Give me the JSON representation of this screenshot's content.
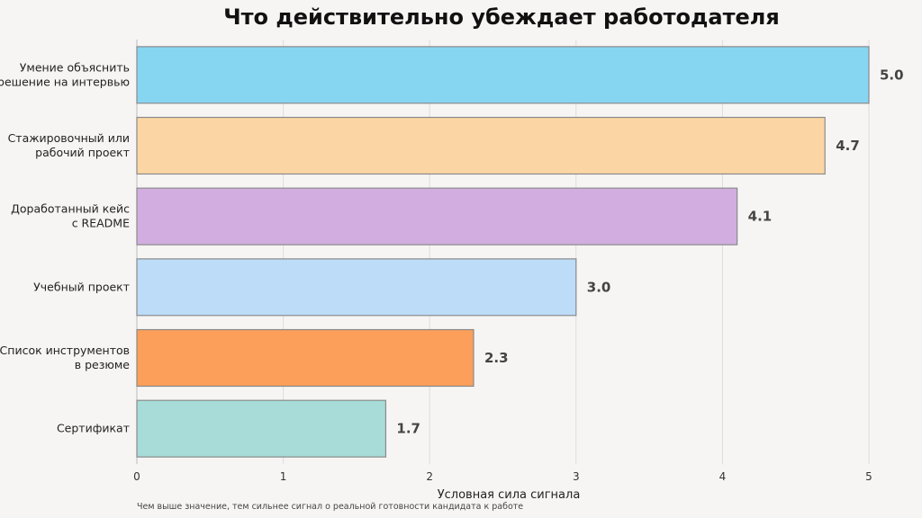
{
  "chart_data": {
    "type": "bar",
    "orientation": "horizontal",
    "title": "Что действительно убеждает работодателя",
    "xlabel": "Условная сила сигнала",
    "ylabel": "",
    "footnote": "Чем выше значение, тем сильнее сигнал о реальной готовности кандидата к работе",
    "xlim": [
      0,
      5
    ],
    "xticks": [
      "0",
      "1",
      "2",
      "3",
      "4",
      "5"
    ],
    "grid": "vertical",
    "categories": [
      [
        "Умение объяснить",
        "решение на интервью"
      ],
      [
        "Стажировочный или",
        "рабочий проект"
      ],
      [
        "Доработанный кейс",
        "с README"
      ],
      [
        "Учебный проект"
      ],
      [
        "Список инструментов",
        "в резюме"
      ],
      [
        "Сертификат"
      ]
    ],
    "values": [
      5.0,
      4.7,
      4.1,
      3.0,
      2.3,
      1.7
    ],
    "value_labels": [
      "5.0",
      "4.7",
      "4.1",
      "3.0",
      "2.3",
      "1.7"
    ],
    "colors": [
      "#86d6f2",
      "#fbd6a4",
      "#d2aee0",
      "#bcdcf8",
      "#fb9f5a",
      "#a7dcd9"
    ],
    "edge_colors": [
      "#8a8a8a",
      "#8a8a8a",
      "#8a8a8a",
      "#8a8a8a",
      "#8a8a8a",
      "#8a8a8a"
    ]
  }
}
